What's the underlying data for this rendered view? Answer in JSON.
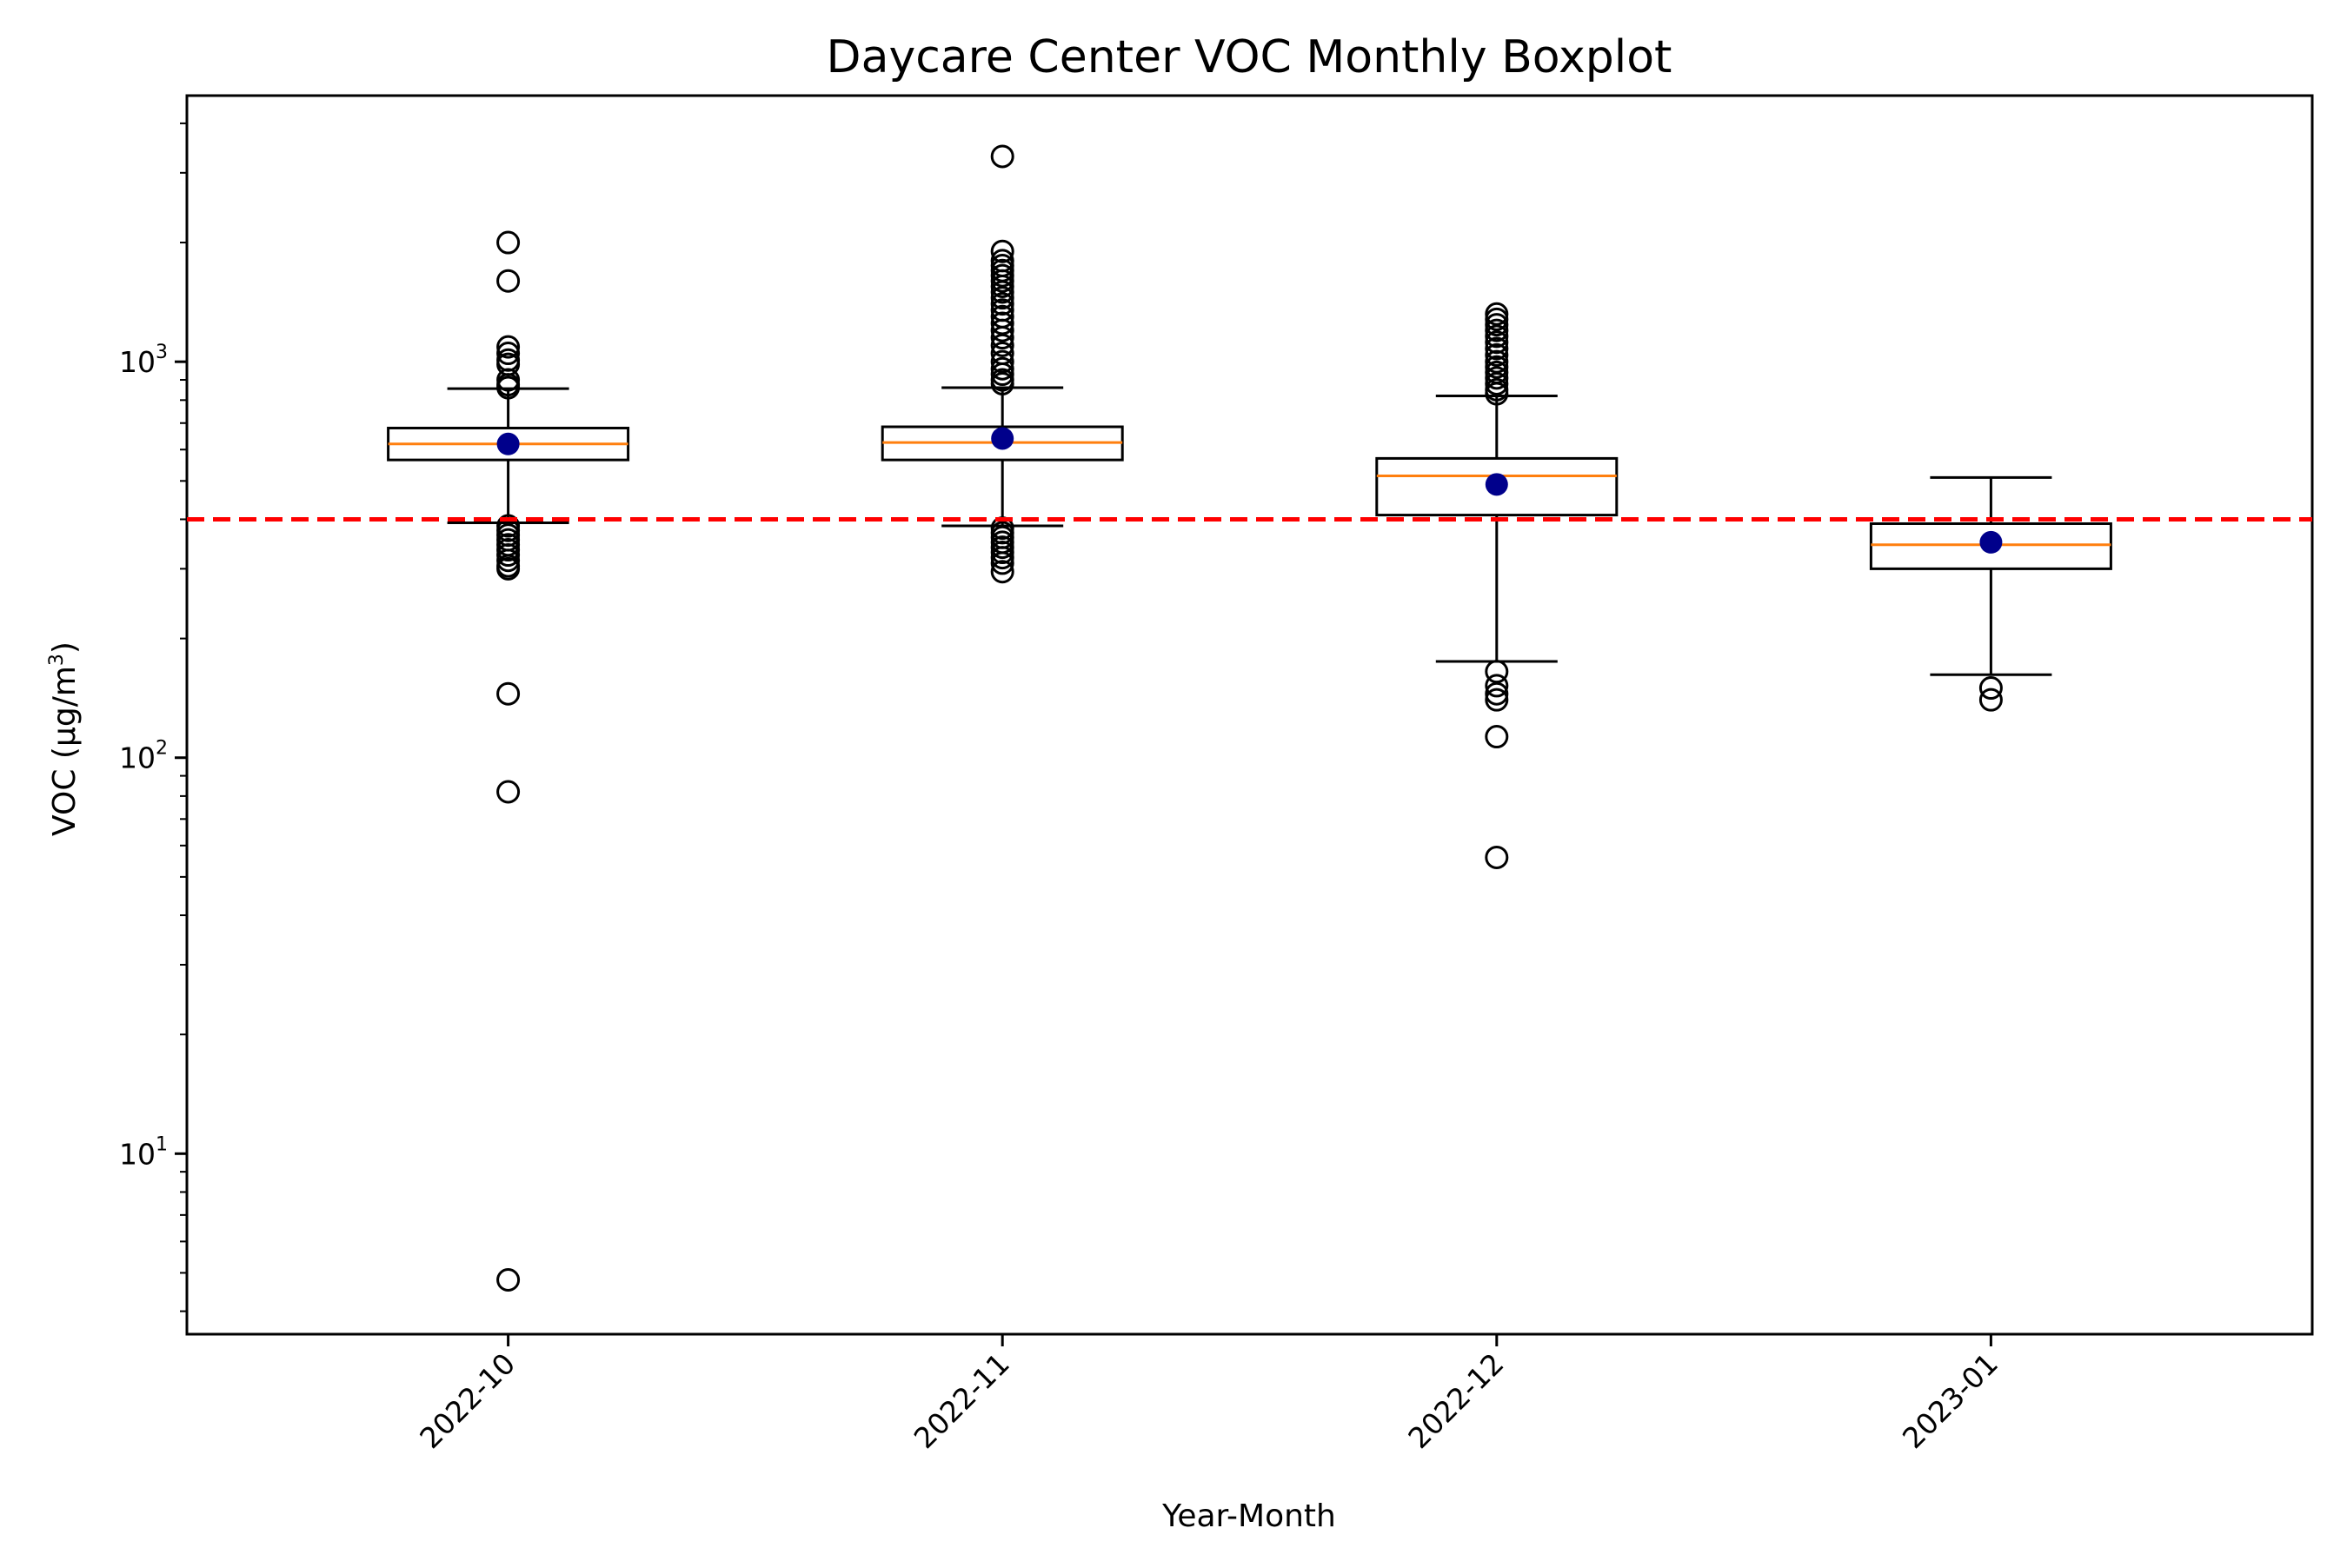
{
  "chart_data": {
    "type": "boxplot",
    "title": "Daycare Center VOC Monthly Boxplot",
    "xlabel": "Year-Month",
    "ylabel_parts": [
      "VOC (μg/m",
      "3",
      ")"
    ],
    "yscale": "log",
    "ylim": [
      3.5,
      4700
    ],
    "yticks": [
      {
        "value": 10,
        "base": "10",
        "exp": "1"
      },
      {
        "value": 100,
        "base": "10",
        "exp": "2"
      },
      {
        "value": 1000,
        "base": "10",
        "exp": "3"
      }
    ],
    "reference_line": {
      "value": 400,
      "color": "#ff0000",
      "style": "dashed"
    },
    "colors": {
      "box": "#000000",
      "median": "#ff7f0e",
      "mean": "#00008b",
      "flier": "#000000"
    },
    "categories": [
      "2022-10",
      "2022-11",
      "2022-12",
      "2023-01"
    ],
    "boxes": [
      {
        "category": "2022-10",
        "q1": 565,
        "median": 620,
        "q3": 680,
        "whisker_low": 392,
        "whisker_high": 855,
        "mean": 620,
        "fliers": [
          2000,
          1600,
          1090,
          1050,
          1010,
          985,
          900,
          875,
          860,
          385,
          375,
          365,
          355,
          345,
          335,
          325,
          315,
          305,
          300,
          145,
          82,
          4.8
        ]
      },
      {
        "category": "2022-11",
        "q1": 565,
        "median": 625,
        "q3": 685,
        "whisker_low": 385,
        "whisker_high": 860,
        "mean": 640,
        "fliers": [
          3300,
          1900,
          1800,
          1750,
          1700,
          1650,
          1600,
          1550,
          1500,
          1450,
          1400,
          1350,
          1300,
          1250,
          1200,
          1150,
          1100,
          1050,
          1000,
          960,
          930,
          900,
          880,
          380,
          370,
          360,
          350,
          340,
          330,
          320,
          310,
          295
        ]
      },
      {
        "category": "2022-12",
        "q1": 410,
        "median": 515,
        "q3": 570,
        "whisker_low": 175,
        "whisker_high": 820,
        "mean": 490,
        "fliers": [
          1320,
          1280,
          1240,
          1200,
          1160,
          1120,
          1080,
          1040,
          1000,
          970,
          940,
          910,
          880,
          850,
          830,
          165,
          152,
          145,
          140,
          113,
          56
        ]
      },
      {
        "category": "2023-01",
        "q1": 300,
        "median": 345,
        "q3": 390,
        "whisker_low": 162,
        "whisker_high": 510,
        "mean": 350,
        "fliers": [
          150,
          140
        ]
      }
    ]
  }
}
